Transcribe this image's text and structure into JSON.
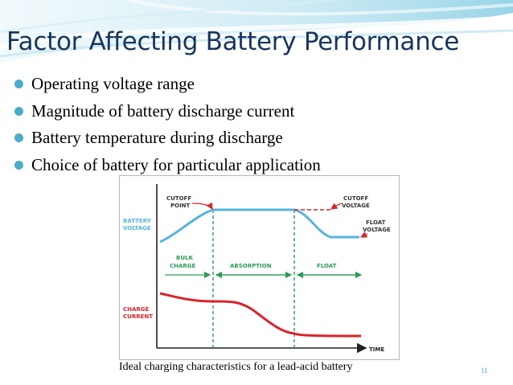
{
  "slide": {
    "title": "Factor Affecting Battery Performance",
    "bullets": [
      "Operating voltage range",
      "Magnitude of battery discharge current",
      "Battery temperature during discharge",
      "Choice of battery for particular application"
    ],
    "caption": "Ideal charging characteristics for a lead-acid battery",
    "page_number": "11"
  },
  "diagram": {
    "labels": {
      "battery": "BATTERY",
      "voltage": "VOLTAGE",
      "cutoff": "CUTOFF",
      "point": "POINT",
      "cutoff_r": "CUTOFF",
      "voltage_r": "VOLTAGE",
      "float": "FLOAT",
      "voltage_f": "VOLTAGE",
      "bulk": "BULK",
      "charge": "CHARGE",
      "absorption": "ABSORPTION",
      "float_phase": "FLOAT",
      "charge2": "CHARGE",
      "current": "CURRENT",
      "time": "TIME"
    }
  },
  "colors": {
    "title": "#17365d",
    "bullet": "#4bacc6",
    "voltage_curve": "#55b4e0",
    "current_curve": "#d9232a",
    "phase_lines": "#2e9b57"
  }
}
